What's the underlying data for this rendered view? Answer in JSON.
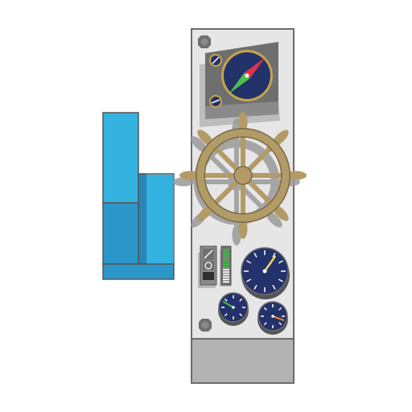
{
  "scene": {
    "background_color": "#ffffff",
    "icons": {
      "left_block": "stacked-blocks-icon",
      "panel": "ship-helm-console-icon",
      "wheel": "ship-wheel-icon",
      "compass": "compass-icon",
      "switch": "toggle-switch-icon",
      "level": "level-meter-icon",
      "gauge": "dial-gauge-icon",
      "screw": "screw-icon"
    },
    "colors": {
      "block_light": "#33b2df",
      "block_mid": "#2b97c9",
      "block_dark": "#2a86b5",
      "outline": "#555555",
      "panel_light": "#e6e6e6",
      "panel_bottom": "#b3b3b3",
      "panel_border": "#6b6b6b",
      "metal_dark": "#6f6f6f",
      "metal_mid": "#8a8a8a",
      "wheel_wood": "#b39b67",
      "wheel_shadow": "#9a9a9a",
      "dial_navy": "#23326b",
      "dial_rim": "#c7a44a",
      "needle_red": "#e0344a",
      "needle_green": "#4bc04b",
      "needle_orange": "#f08a24",
      "needle_yellow": "#f2d265",
      "level_green": "#3fbf4a"
    },
    "instruments": {
      "big_gauge_needle_deg": 35,
      "small_gauge_left_needle_deg": -60,
      "small_gauge_right_needle_deg": 110,
      "compass_needle_deg": 45,
      "level_meter_fill": 0.55
    }
  }
}
